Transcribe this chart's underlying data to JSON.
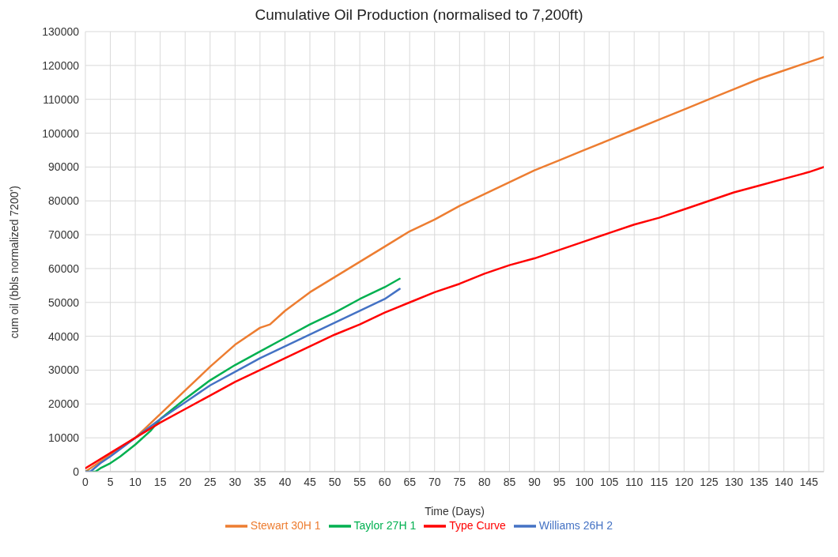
{
  "chart_data": {
    "type": "line",
    "title": "Cumulative Oil Production  (normalised to 7,200ft)",
    "xlabel": "Time (Days)",
    "ylabel": "cum oil (bbls normalized 7200')",
    "xlim": [
      0,
      148
    ],
    "xticks": [
      0,
      5,
      10,
      15,
      20,
      25,
      30,
      35,
      40,
      45,
      50,
      55,
      60,
      65,
      70,
      75,
      80,
      85,
      90,
      95,
      100,
      105,
      110,
      115,
      120,
      125,
      130,
      135,
      140,
      145
    ],
    "ylim": [
      0,
      130000
    ],
    "yticks": [
      0,
      10000,
      20000,
      30000,
      40000,
      50000,
      60000,
      70000,
      80000,
      90000,
      100000,
      110000,
      120000,
      130000
    ],
    "grid": true,
    "legend": "bottom",
    "marker": "none",
    "line_style": "solid",
    "series": [
      {
        "name": "Stewart 30H 1",
        "color": "#ed7d31",
        "x": [
          0,
          5,
          10,
          15,
          20,
          25,
          30,
          35,
          37,
          40,
          45,
          50,
          55,
          60,
          65,
          70,
          75,
          80,
          85,
          90,
          95,
          100,
          105,
          110,
          115,
          120,
          125,
          130,
          135,
          140,
          145,
          148
        ],
        "values": [
          0,
          5000,
          10000,
          17000,
          24000,
          31000,
          37500,
          42500,
          43500,
          47500,
          53000,
          57500,
          62000,
          66500,
          71000,
          74500,
          78500,
          82000,
          85500,
          89000,
          92000,
          95000,
          98000,
          101000,
          104000,
          107000,
          110000,
          113000,
          116000,
          118500,
          121000,
          122500
        ]
      },
      {
        "name": "Taylor 27H 1",
        "color": "#00b050",
        "x": [
          0,
          2,
          3,
          5,
          7,
          10,
          13,
          15,
          20,
          25,
          30,
          35,
          40,
          45,
          50,
          55,
          60,
          63
        ],
        "values": [
          0,
          0,
          1000,
          2500,
          4500,
          8000,
          12000,
          15500,
          21500,
          27000,
          31500,
          35500,
          39500,
          43500,
          47000,
          51000,
          54500,
          57000
        ]
      },
      {
        "name": "Williams 26H 2",
        "color": "#4472c4",
        "x": [
          0,
          1,
          3,
          5,
          10,
          15,
          20,
          25,
          30,
          35,
          40,
          45,
          50,
          55,
          60,
          63
        ],
        "values": [
          0,
          0,
          2500,
          4500,
          10000,
          15500,
          20500,
          25500,
          29500,
          33500,
          37000,
          40500,
          44000,
          47500,
          51000,
          54000
        ]
      },
      {
        "name": "Type Curve",
        "color": "#ff0000",
        "x": [
          0,
          5,
          10,
          15,
          20,
          25,
          30,
          35,
          40,
          45,
          50,
          55,
          60,
          65,
          70,
          75,
          80,
          85,
          90,
          95,
          100,
          105,
          110,
          115,
          120,
          125,
          130,
          135,
          140,
          145,
          148
        ],
        "values": [
          1000,
          5500,
          10000,
          14500,
          18500,
          22500,
          26500,
          30000,
          33500,
          37000,
          40500,
          43500,
          47000,
          50000,
          53000,
          55500,
          58500,
          61000,
          63000,
          65500,
          68000,
          70500,
          73000,
          75000,
          77500,
          80000,
          82500,
          84500,
          86500,
          88500,
          90000
        ]
      }
    ]
  }
}
